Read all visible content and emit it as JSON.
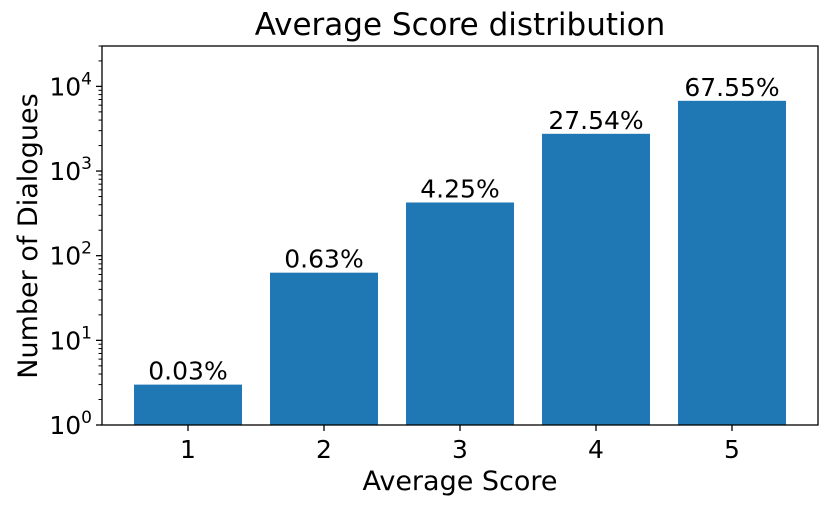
{
  "chart_data": {
    "type": "bar",
    "title": "Average Score distribution",
    "xlabel": "Average Score",
    "ylabel": "Number of Dialogues",
    "yscale": "log",
    "ylim": [
      1,
      30000
    ],
    "categories": [
      "1",
      "2",
      "3",
      "4",
      "5"
    ],
    "values": [
      3,
      63,
      425,
      2754,
      6755
    ],
    "data_labels": [
      "0.03%",
      "0.63%",
      "4.25%",
      "27.54%",
      "67.55%"
    ],
    "ytick_values": [
      1,
      10,
      100,
      1000,
      10000
    ],
    "ytick_labels": [
      {
        "base": "10",
        "exp": "0"
      },
      {
        "base": "10",
        "exp": "1"
      },
      {
        "base": "10",
        "exp": "2"
      },
      {
        "base": "10",
        "exp": "3"
      },
      {
        "base": "10",
        "exp": "4"
      }
    ],
    "bar_color": "#1f77b4",
    "grid": false,
    "legend": "none"
  }
}
